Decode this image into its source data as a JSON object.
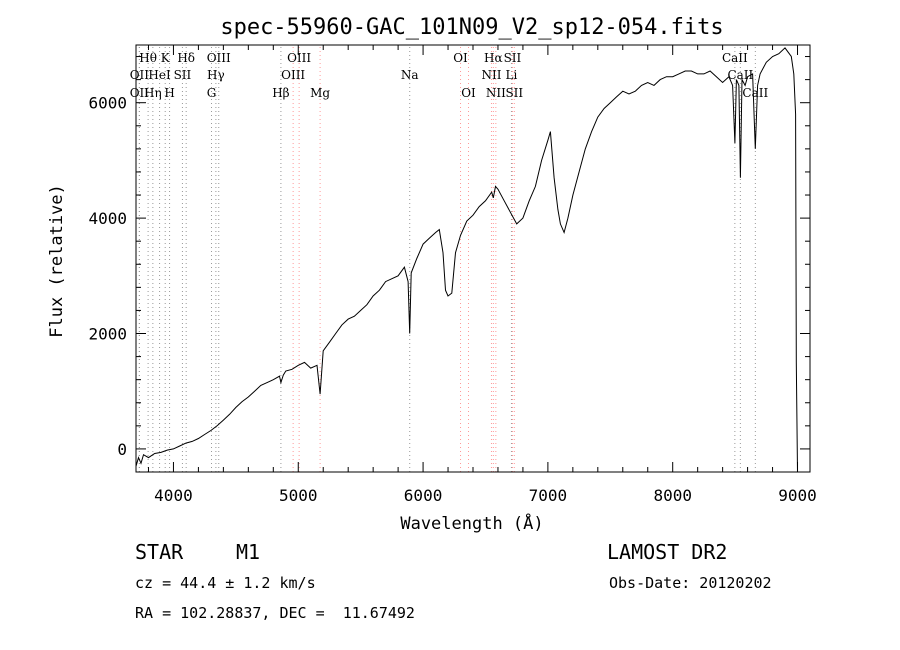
{
  "chart_data": {
    "type": "line",
    "title": "spec-55960-GAC_101N09_V2_sp12-054.fits",
    "xlabel": "Wavelength (Å)",
    "ylabel": "Flux (relative)",
    "xlim": [
      3700,
      9100
    ],
    "ylim": [
      -400,
      7000
    ],
    "x_ticks": [
      4000,
      5000,
      6000,
      7000,
      8000,
      9000
    ],
    "y_ticks": [
      0,
      2000,
      4000,
      6000
    ],
    "grid": false,
    "series": [
      {
        "name": "flux",
        "x": [
          3700,
          3720,
          3740,
          3760,
          3800,
          3850,
          3900,
          3950,
          4000,
          4050,
          4100,
          4150,
          4200,
          4250,
          4300,
          4350,
          4400,
          4450,
          4500,
          4550,
          4600,
          4650,
          4700,
          4750,
          4800,
          4850,
          4861,
          4880,
          4900,
          4950,
          5000,
          5050,
          5100,
          5150,
          5175,
          5200,
          5250,
          5300,
          5350,
          5400,
          5450,
          5500,
          5550,
          5600,
          5650,
          5700,
          5750,
          5800,
          5850,
          5880,
          5893,
          5905,
          5950,
          6000,
          6050,
          6100,
          6130,
          6160,
          6180,
          6200,
          6230,
          6260,
          6300,
          6350,
          6400,
          6450,
          6500,
          6550,
          6563,
          6580,
          6600,
          6650,
          6700,
          6750,
          6800,
          6850,
          6900,
          6950,
          7000,
          7020,
          7050,
          7080,
          7100,
          7130,
          7160,
          7200,
          7250,
          7300,
          7350,
          7400,
          7450,
          7500,
          7550,
          7600,
          7650,
          7700,
          7750,
          7800,
          7850,
          7900,
          7950,
          8000,
          8050,
          8100,
          8150,
          8200,
          8250,
          8300,
          8350,
          8400,
          8450,
          8480,
          8498,
          8510,
          8530,
          8542,
          8555,
          8580,
          8600,
          8640,
          8662,
          8680,
          8700,
          8750,
          8800,
          8850,
          8900,
          8950,
          8970,
          8985,
          8990,
          9000
        ],
        "y": [
          -300,
          -150,
          -250,
          -100,
          -150,
          -80,
          -60,
          -20,
          0,
          50,
          100,
          130,
          180,
          250,
          320,
          400,
          500,
          600,
          720,
          820,
          900,
          1000,
          1100,
          1150,
          1200,
          1260,
          1150,
          1280,
          1350,
          1380,
          1450,
          1500,
          1400,
          1450,
          950,
          1700,
          1850,
          2000,
          2150,
          2250,
          2300,
          2400,
          2500,
          2650,
          2750,
          2900,
          2950,
          3000,
          3150,
          2900,
          2000,
          3050,
          3300,
          3550,
          3650,
          3750,
          3800,
          3400,
          2750,
          2650,
          2700,
          3400,
          3700,
          3950,
          4050,
          4200,
          4300,
          4450,
          4350,
          4550,
          4500,
          4300,
          4100,
          3900,
          4000,
          4300,
          4550,
          5000,
          5350,
          5500,
          4700,
          4150,
          3900,
          3750,
          4000,
          4400,
          4800,
          5200,
          5500,
          5750,
          5900,
          6000,
          6100,
          6200,
          6150,
          6200,
          6300,
          6350,
          6300,
          6400,
          6450,
          6450,
          6500,
          6550,
          6550,
          6500,
          6500,
          6550,
          6450,
          6350,
          6450,
          6300,
          5300,
          6400,
          6300,
          4700,
          6400,
          6300,
          6450,
          6500,
          5200,
          6300,
          6500,
          6700,
          6800,
          6850,
          6950,
          6800,
          6500,
          5800,
          1500,
          -400
        ]
      }
    ],
    "line_labels": [
      {
        "label": "Hθ",
        "x": 3797,
        "row": 1,
        "color": "#999999"
      },
      {
        "label": "OII",
        "x": 3727,
        "row": 2,
        "color": "#999999"
      },
      {
        "label": "OII",
        "x": 3727,
        "row": 3,
        "color": "#999999"
      },
      {
        "label": "Hη",
        "x": 3835,
        "row": 3,
        "color": "#999999"
      },
      {
        "label": "HeI",
        "x": 3889,
        "row": 2,
        "color": "#999999"
      },
      {
        "label": "K",
        "x": 3934,
        "row": 1,
        "color": "#999999"
      },
      {
        "label": "H",
        "x": 3969,
        "row": 3,
        "color": "#999999"
      },
      {
        "label": "SII",
        "x": 4072,
        "row": 2,
        "color": "#999999"
      },
      {
        "label": "Hδ",
        "x": 4102,
        "row": 1,
        "color": "#999999"
      },
      {
        "label": "G",
        "x": 4305,
        "row": 3,
        "color": "#999999"
      },
      {
        "label": "Hγ",
        "x": 4340,
        "row": 2,
        "color": "#999999"
      },
      {
        "label": "OIII",
        "x": 4363,
        "row": 1,
        "color": "#999999"
      },
      {
        "label": "Hβ",
        "x": 4861,
        "row": 3,
        "color": "#999999"
      },
      {
        "label": "OIII",
        "x": 4959,
        "row": 2,
        "color": "#ff9999"
      },
      {
        "label": "OIII",
        "x": 5007,
        "row": 1,
        "color": "#ff9999"
      },
      {
        "label": "Mg",
        "x": 5175,
        "row": 3,
        "color": "#ff9999"
      },
      {
        "label": "Na",
        "x": 5893,
        "row": 2,
        "color": "#999999"
      },
      {
        "label": "OI",
        "x": 6300,
        "row": 1,
        "color": "#ff9999"
      },
      {
        "label": "OI",
        "x": 6364,
        "row": 3,
        "color": "#ff9999"
      },
      {
        "label": "NII",
        "x": 6548,
        "row": 2,
        "color": "#ff9999"
      },
      {
        "label": "Hα",
        "x": 6563,
        "row": 1,
        "color": "#ff9999"
      },
      {
        "label": "NII",
        "x": 6583,
        "row": 3,
        "color": "#ff9999"
      },
      {
        "label": "Li",
        "x": 6708,
        "row": 2,
        "color": "#999999"
      },
      {
        "label": "SII",
        "x": 6716,
        "row": 1,
        "color": "#ff9999"
      },
      {
        "label": "SII",
        "x": 6731,
        "row": 3,
        "color": "#ff9999"
      },
      {
        "label": "CaII",
        "x": 8498,
        "row": 1,
        "color": "#999999"
      },
      {
        "label": "CaII",
        "x": 8542,
        "row": 2,
        "color": "#999999"
      },
      {
        "label": "CaII",
        "x": 8662,
        "row": 3,
        "color": "#999999"
      }
    ]
  },
  "footer": {
    "class_label": "STAR",
    "subclass": "M1",
    "survey": "LAMOST DR2",
    "cz": "cz = 44.4 ± 1.2 km/s",
    "obs_date": "Obs-Date: 20120202",
    "coords": "RA = 102.28837, DEC =  11.67492"
  }
}
